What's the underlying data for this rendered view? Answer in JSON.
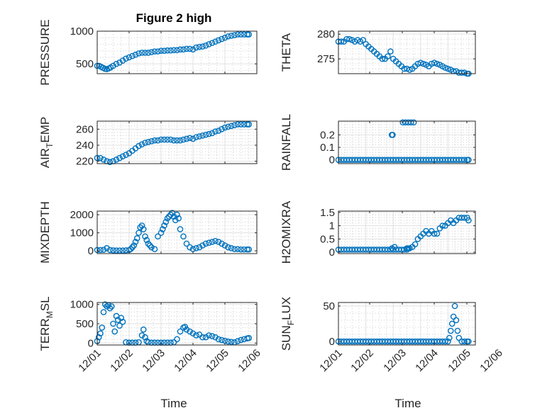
{
  "figure": {
    "title": "Figure 2 high",
    "xlabel": "Time",
    "x_tick_labels": [
      "12/01",
      "12/02",
      "12/03",
      "12/04",
      "12/05",
      "12/06"
    ],
    "marker_color": "#0072bd"
  },
  "chart_data": [
    {
      "type": "scatter",
      "title": "Figure 2 high",
      "ylabel": "PRESSURE",
      "xlim": [
        0,
        5
      ],
      "ylim": [
        350,
        1000
      ],
      "yticks": [
        500,
        1000
      ],
      "grid": true,
      "x": [
        0,
        0.06,
        0.12,
        0.18,
        0.24,
        0.3,
        0.36,
        0.42,
        0.5,
        0.6,
        0.7,
        0.8,
        0.9,
        1.0,
        1.1,
        1.2,
        1.3,
        1.4,
        1.5,
        1.6,
        1.7,
        1.8,
        1.9,
        2.0,
        2.1,
        2.2,
        2.3,
        2.4,
        2.5,
        2.6,
        2.7,
        2.8,
        2.9,
        3.0,
        3.1,
        3.2,
        3.3,
        3.4,
        3.5,
        3.6,
        3.7,
        3.8,
        3.9,
        4.0,
        4.1,
        4.2,
        4.3,
        4.4,
        4.5,
        4.6,
        4.7,
        4.75
      ],
      "y": [
        470,
        470,
        455,
        440,
        425,
        420,
        430,
        445,
        470,
        500,
        520,
        550,
        580,
        600,
        620,
        640,
        660,
        670,
        670,
        670,
        680,
        690,
        690,
        700,
        700,
        705,
        705,
        710,
        710,
        720,
        720,
        730,
        730,
        720,
        750,
        760,
        765,
        780,
        800,
        820,
        840,
        860,
        880,
        900,
        920,
        930,
        940,
        950,
        950,
        950,
        950,
        950
      ]
    },
    {
      "type": "scatter",
      "ylabel": "THETA",
      "xlim": [
        0,
        5
      ],
      "ylim": [
        272,
        280.6
      ],
      "yticks": [
        275,
        280
      ],
      "grid": true,
      "x": [
        0,
        0.1,
        0.2,
        0.3,
        0.4,
        0.5,
        0.6,
        0.7,
        0.8,
        0.9,
        1.0,
        1.1,
        1.2,
        1.3,
        1.4,
        1.5,
        1.6,
        1.7,
        1.8,
        1.9,
        2.0,
        2.1,
        2.2,
        2.3,
        2.4,
        2.5,
        2.6,
        2.7,
        2.8,
        2.9,
        3.0,
        3.1,
        3.2,
        3.3,
        3.4,
        3.5,
        3.6,
        3.7,
        3.8,
        3.9,
        4.0,
        4.1,
        4.2,
        4.3,
        4.4,
        4.5,
        4.6,
        4.7,
        4.75
      ],
      "y": [
        278.5,
        278.5,
        278.5,
        279.0,
        279.0,
        278.8,
        278.5,
        278.8,
        278.5,
        278.8,
        278.0,
        277.5,
        277.0,
        276.5,
        276.0,
        275.5,
        275.0,
        275.0,
        275.5,
        276.5,
        275.0,
        274.5,
        274.0,
        273.5,
        273.0,
        273.0,
        272.8,
        273.0,
        273.5,
        274.0,
        274.2,
        274.0,
        273.8,
        273.5,
        274.0,
        274.2,
        274.0,
        273.8,
        273.5,
        273.2,
        273.0,
        272.8,
        272.5,
        272.5,
        272.2,
        272.2,
        272.2,
        272.0,
        272.0
      ]
    },
    {
      "type": "scatter",
      "ylabel": "AIR_TEMP",
      "xlim": [
        0,
        5
      ],
      "ylim": [
        217,
        270
      ],
      "yticks": [
        220,
        240,
        260
      ],
      "grid": true,
      "x": [
        0,
        0.1,
        0.2,
        0.3,
        0.4,
        0.5,
        0.6,
        0.7,
        0.8,
        0.9,
        1.0,
        1.1,
        1.2,
        1.3,
        1.4,
        1.5,
        1.6,
        1.7,
        1.8,
        1.9,
        2.0,
        2.1,
        2.2,
        2.3,
        2.4,
        2.5,
        2.6,
        2.7,
        2.8,
        2.9,
        3.0,
        3.1,
        3.2,
        3.3,
        3.4,
        3.5,
        3.6,
        3.7,
        3.8,
        3.9,
        4.0,
        4.1,
        4.2,
        4.3,
        4.4,
        4.5,
        4.6,
        4.7,
        4.75
      ],
      "y": [
        224,
        224,
        222,
        220,
        219,
        220,
        222,
        224,
        226,
        228,
        230,
        233,
        236,
        239,
        241,
        243,
        244,
        245,
        246,
        246,
        247,
        247,
        247,
        247,
        246,
        246,
        246,
        247,
        248,
        249,
        248,
        250,
        251,
        252,
        253,
        254,
        255,
        257,
        258,
        260,
        262,
        263,
        264,
        265,
        266,
        266,
        266,
        266,
        266
      ]
    },
    {
      "type": "scatter",
      "ylabel": "RAINFALL",
      "xlim": [
        0,
        5
      ],
      "ylim": [
        -0.03,
        0.31
      ],
      "yticks": [
        0,
        0.1,
        0.2
      ],
      "grid": true,
      "x": [
        0,
        0.1,
        0.2,
        0.3,
        0.4,
        0.5,
        0.6,
        0.7,
        0.8,
        0.9,
        1.0,
        1.1,
        1.2,
        1.3,
        1.4,
        1.5,
        1.6,
        1.7,
        1.8,
        1.9,
        2.0,
        2.1,
        2.2,
        2.3,
        2.4,
        2.5,
        2.6,
        2.7,
        2.8,
        2.9,
        3.0,
        3.1,
        3.2,
        3.3,
        3.4,
        3.5,
        3.6,
        3.7,
        3.8,
        3.9,
        4.0,
        4.1,
        4.2,
        4.3,
        4.4,
        4.5,
        4.6,
        4.7,
        4.75,
        1.95,
        1.98,
        2.35,
        2.45,
        2.55,
        2.65,
        2.75
      ],
      "y": [
        0,
        0,
        0,
        0,
        0,
        0,
        0,
        0,
        0,
        0,
        0,
        0,
        0,
        0,
        0,
        0,
        0,
        0,
        0,
        0,
        0,
        0,
        0,
        0,
        0,
        0,
        0,
        0,
        0,
        0,
        0,
        0,
        0,
        0,
        0,
        0,
        0,
        0,
        0,
        0,
        0,
        0,
        0,
        0,
        0,
        0,
        0,
        0,
        0,
        0.2,
        0.2,
        0.3,
        0.3,
        0.3,
        0.3,
        0.3
      ]
    },
    {
      "type": "scatter",
      "ylabel": "MIXDEPTH",
      "xlim": [
        0,
        5
      ],
      "ylim": [
        -150,
        2200
      ],
      "yticks": [
        0,
        1000,
        2000
      ],
      "grid": true,
      "x": [
        0,
        0.1,
        0.2,
        0.3,
        0.4,
        0.5,
        0.6,
        0.7,
        0.8,
        0.9,
        1.0,
        1.05,
        1.1,
        1.15,
        1.2,
        1.25,
        1.3,
        1.35,
        1.4,
        1.45,
        1.5,
        1.55,
        1.6,
        1.65,
        1.7,
        1.8,
        1.9,
        2.0,
        2.05,
        2.1,
        2.15,
        2.2,
        2.25,
        2.3,
        2.35,
        2.4,
        2.45,
        2.5,
        2.55,
        2.6,
        2.7,
        2.8,
        2.9,
        3.0,
        3.1,
        3.2,
        3.3,
        3.4,
        3.5,
        3.6,
        3.7,
        3.8,
        3.9,
        4.0,
        4.1,
        4.2,
        4.3,
        4.4,
        4.5,
        4.6,
        4.7,
        4.75
      ],
      "y": [
        50,
        50,
        60,
        150,
        50,
        30,
        20,
        20,
        20,
        30,
        50,
        100,
        200,
        300,
        500,
        700,
        1000,
        1300,
        1400,
        1200,
        800,
        600,
        400,
        300,
        200,
        100,
        800,
        1000,
        1200,
        1400,
        1600,
        1800,
        1900,
        2000,
        2100,
        1900,
        1700,
        2000,
        1800,
        1200,
        800,
        400,
        200,
        100,
        150,
        200,
        300,
        400,
        450,
        500,
        550,
        500,
        400,
        300,
        200,
        150,
        100,
        100,
        80,
        80,
        80,
        80
      ]
    },
    {
      "type": "scatter",
      "ylabel": "H2OMIXRA",
      "xlim": [
        0,
        5
      ],
      "ylim": [
        -0.05,
        1.55
      ],
      "yticks": [
        0,
        0.5,
        1,
        1.5
      ],
      "grid": true,
      "x": [
        0,
        0.1,
        0.2,
        0.3,
        0.4,
        0.5,
        0.6,
        0.7,
        0.8,
        0.9,
        1.0,
        1.1,
        1.2,
        1.3,
        1.4,
        1.5,
        1.6,
        1.7,
        1.8,
        1.9,
        2.0,
        2.1,
        2.2,
        2.3,
        2.4,
        2.5,
        2.6,
        2.7,
        2.8,
        2.9,
        3.0,
        3.1,
        3.2,
        3.3,
        3.4,
        3.5,
        3.6,
        3.7,
        3.8,
        3.9,
        4.0,
        4.1,
        4.2,
        4.3,
        4.4,
        4.5,
        4.6,
        4.7,
        4.75,
        1.95,
        2.05,
        2.5,
        2.55
      ],
      "y": [
        0.1,
        0.1,
        0.1,
        0.1,
        0.1,
        0.1,
        0.1,
        0.1,
        0.1,
        0.1,
        0.1,
        0.1,
        0.1,
        0.1,
        0.1,
        0.1,
        0.1,
        0.1,
        0.1,
        0.1,
        0.1,
        0.1,
        0.1,
        0.1,
        0.1,
        0.15,
        0.15,
        0.2,
        0.3,
        0.5,
        0.6,
        0.7,
        0.8,
        0.7,
        0.8,
        0.7,
        0.7,
        0.9,
        1.0,
        1.0,
        1.1,
        1.2,
        1.1,
        1.2,
        1.3,
        1.3,
        1.3,
        1.3,
        1.2,
        0.15,
        0.2,
        0.1,
        0.15
      ]
    },
    {
      "type": "scatter",
      "ylabel": "TERR_MSL",
      "xlim": [
        0,
        5
      ],
      "ylim": [
        -50,
        1050
      ],
      "yticks": [
        0,
        500,
        1000
      ],
      "grid": true,
      "x": [
        0,
        0.05,
        0.1,
        0.15,
        0.2,
        0.25,
        0.3,
        0.35,
        0.4,
        0.45,
        0.5,
        0.55,
        0.6,
        0.65,
        0.7,
        0.75,
        0.8,
        0.9,
        1.0,
        1.1,
        1.2,
        1.3,
        1.4,
        1.45,
        1.5,
        1.55,
        1.6,
        1.7,
        1.8,
        1.9,
        2.0,
        2.1,
        2.2,
        2.3,
        2.4,
        2.5,
        2.6,
        2.7,
        2.75,
        2.8,
        2.9,
        3.0,
        3.1,
        3.2,
        3.3,
        3.4,
        3.5,
        3.6,
        3.7,
        3.8,
        3.9,
        4.0,
        4.1,
        4.2,
        4.3,
        4.4,
        4.5,
        4.6,
        4.7,
        4.75
      ],
      "y": [
        50,
        150,
        250,
        400,
        800,
        1000,
        950,
        980,
        900,
        950,
        500,
        300,
        700,
        600,
        450,
        650,
        550,
        20,
        10,
        10,
        10,
        20,
        200,
        350,
        150,
        50,
        20,
        10,
        10,
        10,
        10,
        10,
        10,
        10,
        20,
        100,
        300,
        400,
        420,
        350,
        300,
        250,
        200,
        220,
        150,
        150,
        200,
        180,
        150,
        100,
        80,
        60,
        40,
        30,
        20,
        50,
        80,
        100,
        120,
        130
      ]
    },
    {
      "type": "scatter",
      "ylabel": "SUN_FLUX",
      "xlim": [
        0,
        5
      ],
      "ylim": [
        -5,
        55
      ],
      "yticks": [
        0,
        50
      ],
      "grid": true,
      "x": [
        0,
        0.1,
        0.2,
        0.3,
        0.4,
        0.5,
        0.6,
        0.7,
        0.8,
        0.9,
        1.0,
        1.1,
        1.2,
        1.3,
        1.4,
        1.5,
        1.6,
        1.7,
        1.8,
        1.9,
        2.0,
        2.1,
        2.2,
        2.3,
        2.4,
        2.5,
        2.6,
        2.7,
        2.8,
        2.9,
        3.0,
        3.1,
        3.2,
        3.3,
        3.4,
        3.5,
        3.6,
        3.7,
        3.8,
        3.9,
        4.0,
        4.05,
        4.1,
        4.15,
        4.2,
        4.25,
        4.3,
        4.35,
        4.4,
        4.5,
        4.6,
        4.7,
        4.75
      ],
      "y": [
        0,
        0,
        0,
        0,
        0,
        0,
        0,
        0,
        0,
        0,
        0,
        0,
        0,
        0,
        0,
        0,
        0,
        0,
        0,
        0,
        0,
        0,
        0,
        0,
        0,
        0,
        0,
        0,
        0,
        0,
        0,
        0,
        0,
        0,
        0,
        0,
        0,
        0,
        0,
        0,
        0,
        5,
        15,
        25,
        35,
        50,
        30,
        15,
        5,
        0,
        0,
        0,
        0
      ]
    }
  ]
}
